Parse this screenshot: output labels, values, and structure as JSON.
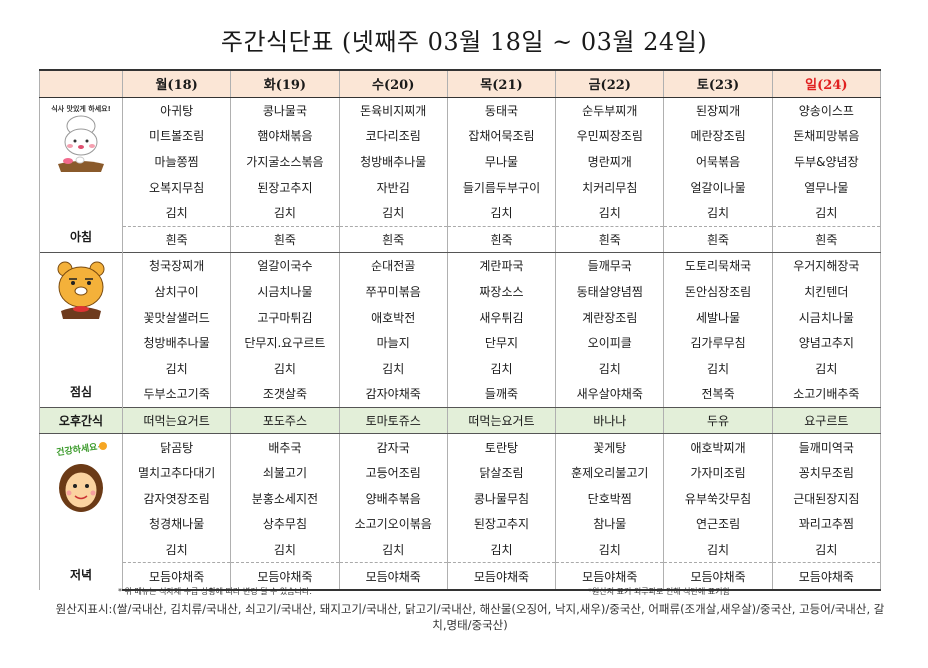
{
  "title": "주간식단표 (넷째주 03월 18일 ~ 03월 24일)",
  "days": [
    "월(18)",
    "화(19)",
    "수(20)",
    "목(21)",
    "금(22)",
    "토(23)",
    "일(24)"
  ],
  "colors": {
    "header_bg": "#fbe6d6",
    "snack_bg": "#e3efd9",
    "sunday": "#e02020"
  },
  "breakfast": {
    "label": "아침",
    "illustration_text": "식사 맛있게 하세요!",
    "rows": [
      [
        "아귀탕",
        "콩나물국",
        "돈육비지찌개",
        "동태국",
        "순두부찌개",
        "된장찌개",
        "양송이스프"
      ],
      [
        "미트볼조림",
        "햄야채볶음",
        "코다리조림",
        "잡채어묵조림",
        "우민찌장조림",
        "메란장조림",
        "돈채피망볶음"
      ],
      [
        "마늘쫑찜",
        "가지굴소스볶음",
        "청방배추나물",
        "무나물",
        "명란찌개",
        "어묵볶음",
        "두부&양념장"
      ],
      [
        "오복지무침",
        "된장고추지",
        "자반김",
        "들기름두부구이",
        "치커리무침",
        "얼갈이나물",
        "열무나물"
      ],
      [
        "김치",
        "김치",
        "김치",
        "김치",
        "김치",
        "김치",
        "김치"
      ],
      [
        "흰죽",
        "흰죽",
        "흰죽",
        "흰죽",
        "흰죽",
        "흰죽",
        "흰죽"
      ]
    ]
  },
  "lunch": {
    "label": "점심",
    "rows": [
      [
        "청국장찌개",
        "얼갈이국수",
        "순대전골",
        "계란파국",
        "들깨무국",
        "도토리묵채국",
        "우거지해장국"
      ],
      [
        "삼치구이",
        "시금치나물",
        "쭈꾸미볶음",
        "짜장소스",
        "동태살양념찜",
        "돈안심장조림",
        "치킨텐더"
      ],
      [
        "꽃맛살샐러드",
        "고구마튀김",
        "애호박전",
        "새우튀김",
        "계란장조림",
        "세발나물",
        "시금치나물"
      ],
      [
        "청방배추나물",
        "단무지.요구르트",
        "마늘지",
        "단무지",
        "오이피클",
        "김가루무침",
        "양념고추지"
      ],
      [
        "김치",
        "김치",
        "김치",
        "김치",
        "김치",
        "김치",
        "김치"
      ],
      [
        "두부소고기죽",
        "조갯살죽",
        "감자야채죽",
        "들깨죽",
        "새우살야채죽",
        "전복죽",
        "소고기배추죽"
      ]
    ]
  },
  "snack": {
    "label": "오후간식",
    "items": [
      "떠먹는요거트",
      "포도주스",
      "토마토쥬스",
      "떠먹는요거트",
      "바나나",
      "두유",
      "요구르트"
    ]
  },
  "dinner": {
    "label": "저녁",
    "illustration_text": "건강하세요~",
    "rows": [
      [
        "닭곰탕",
        "배추국",
        "감자국",
        "토란탕",
        "꽃게탕",
        "애호박찌개",
        "들깨미역국"
      ],
      [
        "멸치고추다대기",
        "쇠불고기",
        "고등어조림",
        "닭살조림",
        "훈제오리불고기",
        "가자미조림",
        "꽁치무조림"
      ],
      [
        "감자엿장조림",
        "분홍소세지전",
        "양배추볶음",
        "콩나물무침",
        "단호박찜",
        "유부쑥갓무침",
        "근대된장지짐"
      ],
      [
        "청경채나물",
        "상추무침",
        "소고기오이볶음",
        "된장고추지",
        "참나물",
        "연근조림",
        "꽈리고추찜"
      ],
      [
        "김치",
        "김치",
        "김치",
        "김치",
        "김치",
        "김치",
        "김치"
      ],
      [
        "모듬야채죽",
        "모듬야채죽",
        "모듬야채죽",
        "모듬야채죽",
        "모듬야채죽",
        "모듬야채죽",
        "모듬야채죽"
      ]
    ]
  },
  "notes": {
    "left": "* 위 메뉴는 식자재 수급 상황에 따라 변경 될 수 있습니다.",
    "right": "*원산지 표기 외루파로 인해 식단에 표기함",
    "origin": "원산지표시:(쌀/국내산, 김치류/국내산, 쇠고기/국내산, 돼지고기/국내산, 닭고기/국내산, 해산물(오징어, 낙지,새우)/중국산, 어패류(조개살,새우살)/중국산, 고등어/국내산, 갈치,명태/중국산)"
  }
}
